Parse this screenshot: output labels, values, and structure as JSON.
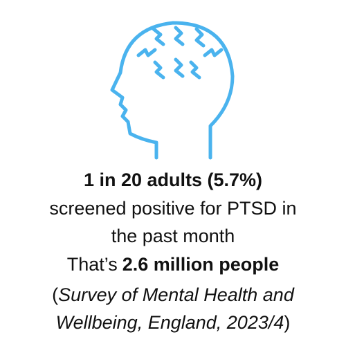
{
  "headline": "1 in 20 adults (5.7%)",
  "detail_lines": [
    "screened positive for PTSD in",
    "the past month"
  ],
  "impact": {
    "prefix": "That’s",
    "emphasis": "2.6 million people"
  },
  "source": {
    "open": "(",
    "title_lines": [
      "Survey of Mental Health and",
      "Wellbeing, England, 2023/4"
    ],
    "close": ")"
  }
}
